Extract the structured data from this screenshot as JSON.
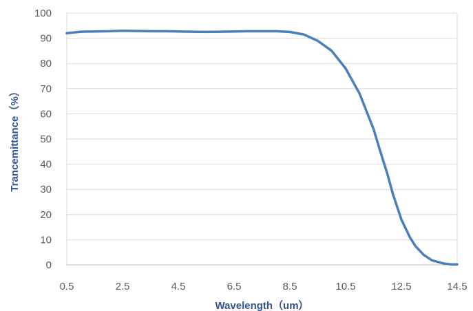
{
  "chart_data": {
    "type": "line",
    "title": "",
    "xlabel": "Wavelength（um）",
    "ylabel": "Trancemittance（%）",
    "xlim": [
      0.5,
      14.5
    ],
    "ylim": [
      0,
      100
    ],
    "xticks": [
      "0.5",
      "2.5",
      "4.5",
      "6.5",
      "8.5",
      "10.5",
      "12.5",
      "14.5"
    ],
    "yticks": [
      "0",
      "10",
      "20",
      "30",
      "40",
      "50",
      "60",
      "70",
      "80",
      "90",
      "100"
    ],
    "grid": "horizontal",
    "legend": "none",
    "series_color": "#4a7ebb",
    "series": [
      {
        "x": [
          0.5,
          1.0,
          1.5,
          2.0,
          2.5,
          3.0,
          3.5,
          4.0,
          4.5,
          5.0,
          5.5,
          6.0,
          6.5,
          7.0,
          7.5,
          8.0,
          8.5,
          9.0,
          9.5,
          10.0,
          10.5,
          11.0,
          11.5,
          11.8,
          12.0,
          12.2,
          12.5,
          12.8,
          13.0,
          13.3,
          13.6,
          14.0,
          14.3,
          14.5
        ],
        "y": [
          92.0,
          92.6,
          92.7,
          92.8,
          93.0,
          92.9,
          92.8,
          92.8,
          92.7,
          92.6,
          92.5,
          92.6,
          92.7,
          92.8,
          92.8,
          92.8,
          92.5,
          91.5,
          89.0,
          85.0,
          78.0,
          68.0,
          54.0,
          43.0,
          36.0,
          28.0,
          18.0,
          11.0,
          7.5,
          4.0,
          1.8,
          0.6,
          0.2,
          0.2
        ]
      }
    ]
  }
}
